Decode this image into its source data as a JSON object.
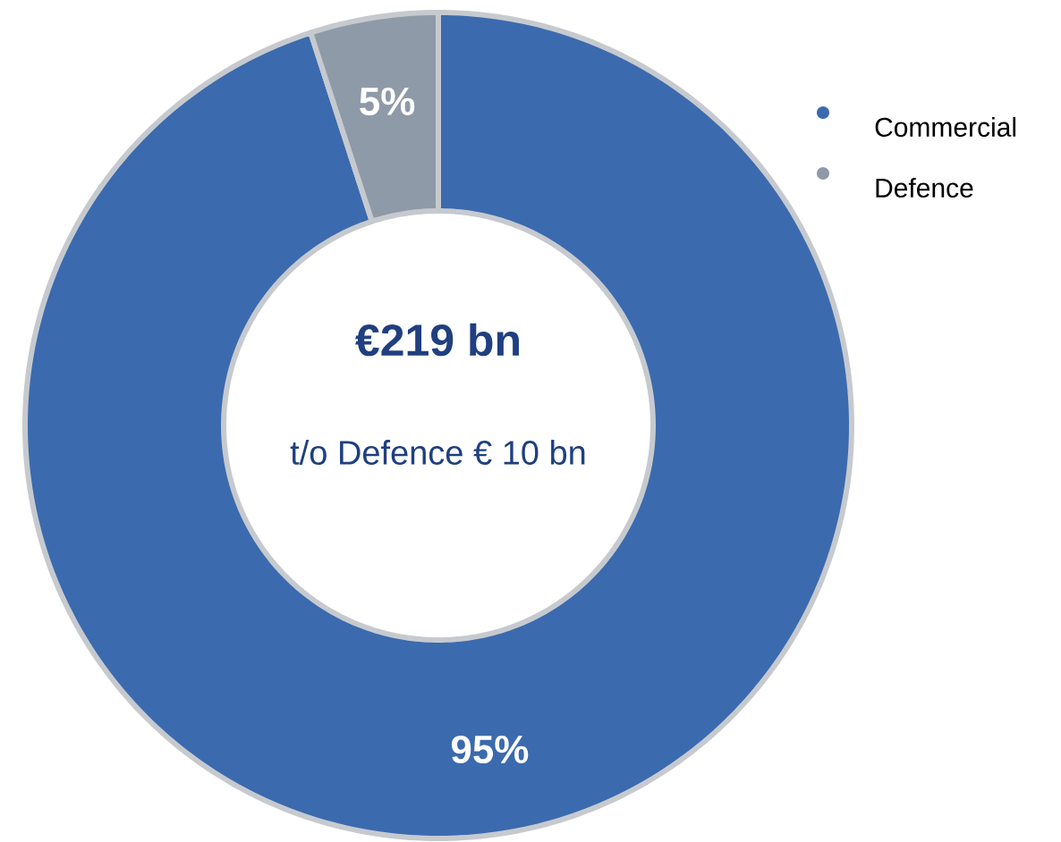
{
  "chart_data": {
    "type": "donut",
    "categories": [
      "Commercial",
      "Defence"
    ],
    "values": [
      95,
      5
    ],
    "colors": [
      "#3b6aae",
      "#8f9aa8"
    ],
    "value_labels": [
      "95%",
      "5%"
    ],
    "legend": "top right",
    "annotations": [
      "€219 bn",
      "t/o Defence € 10 bn"
    ]
  }
}
